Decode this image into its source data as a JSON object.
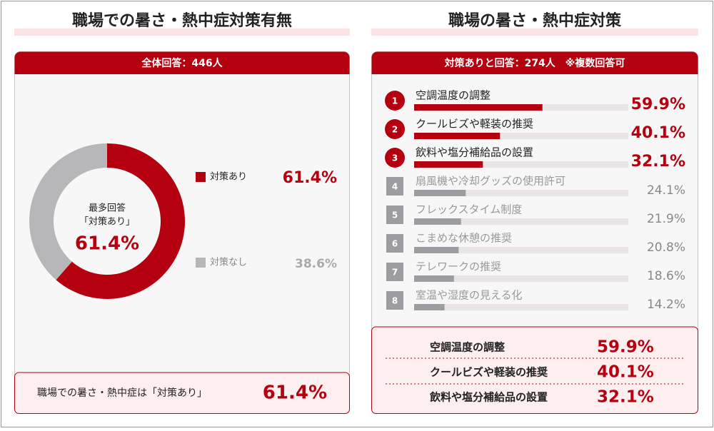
{
  "chart_data": [
    {
      "type": "donut",
      "title": "職場での暑さ・熱中症対策有無",
      "subtitle": "全体回答：446人",
      "center_label": [
        "最多回答",
        "「対策あり」"
      ],
      "categories": [
        "対策あり",
        "対策なし"
      ],
      "values": [
        61.4,
        38.6
      ],
      "value_labels": [
        "61.4%",
        "38.6%"
      ],
      "colors": [
        "#b5000f",
        "#b7b6b9"
      ],
      "note": "職場での暑さ・熱中症は「対策あり」"
    },
    {
      "type": "bar",
      "orientation": "horizontal",
      "title": "職場の暑さ・熱中症対策",
      "subtitle": "対策ありと回答：274人　※複数回答可",
      "ranks": [
        1,
        2,
        3,
        4,
        5,
        6,
        7,
        8
      ],
      "categories": [
        "空調温度の調整",
        "クールビズや軽装の推奨",
        "飲料や塩分補給品の設置",
        "扇風機や冷却グッズの使用許可",
        "フレックスタイム制度",
        "こまめな休憩の推奨",
        "テレワークの推奨",
        "室温や湿度の見える化"
      ],
      "values": [
        59.9,
        40.1,
        32.1,
        24.1,
        21.9,
        20.8,
        18.6,
        14.2
      ],
      "value_labels": [
        "59.9%",
        "40.1%",
        "32.1%",
        "24.1%",
        "21.9%",
        "20.8%",
        "18.6%",
        "14.2%"
      ],
      "colors": [
        "#b5000f",
        "#b5000f",
        "#b5000f",
        "#9d9ca0",
        "#9d9ca0",
        "#9d9ca0",
        "#9d9ca0",
        "#9d9ca0"
      ],
      "xlim": [
        0,
        100
      ]
    }
  ]
}
